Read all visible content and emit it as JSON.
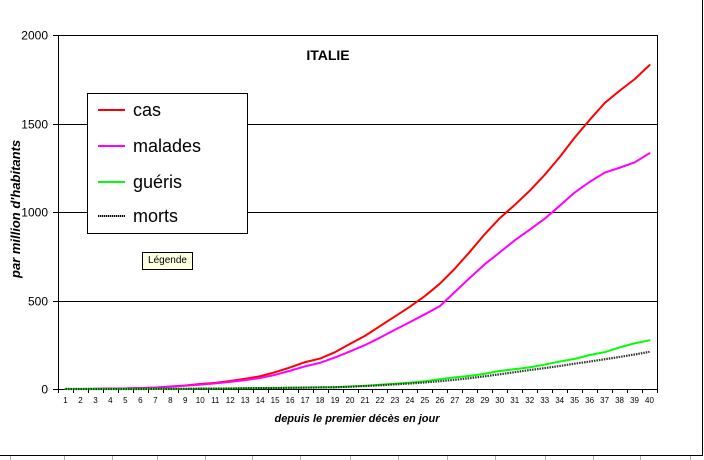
{
  "chart_data": {
    "type": "line",
    "title": "ITALIE",
    "xlabel": "depuis le premier décès en jour",
    "ylabel": "par million d'habitants",
    "categories": [
      1,
      2,
      3,
      4,
      5,
      6,
      7,
      8,
      9,
      10,
      11,
      12,
      13,
      14,
      15,
      16,
      17,
      18,
      19,
      20,
      21,
      22,
      23,
      24,
      25,
      26,
      27,
      28,
      29,
      30,
      31,
      32,
      33,
      34,
      35,
      36,
      37,
      38,
      39,
      40
    ],
    "ylim": [
      0,
      2000
    ],
    "yticks": [
      0,
      500,
      1000,
      1500,
      2000
    ],
    "grid": "horizontal",
    "legend_position": "top-left",
    "series": [
      {
        "name": "cas",
        "color": "#ff0000",
        "dash": "solid",
        "values": [
          0,
          0,
          1,
          2,
          3,
          5,
          8,
          14,
          20,
          28,
          35,
          45,
          58,
          72,
          95,
          122,
          152,
          172,
          208,
          255,
          300,
          355,
          410,
          465,
          525,
          595,
          680,
          775,
          875,
          965,
          1040,
          1120,
          1210,
          1310,
          1420,
          1520,
          1615,
          1685,
          1750,
          1830
        ]
      },
      {
        "name": "malades",
        "color": "#ff00ff",
        "dash": "solid",
        "values": [
          0,
          0,
          1,
          2,
          3,
          5,
          8,
          13,
          18,
          25,
          32,
          40,
          50,
          62,
          80,
          103,
          128,
          148,
          178,
          212,
          248,
          290,
          335,
          378,
          422,
          468,
          548,
          628,
          705,
          772,
          840,
          900,
          962,
          1035,
          1110,
          1170,
          1222,
          1250,
          1280,
          1332
        ]
      },
      {
        "name": "guéris",
        "color": "#00ff00",
        "dash": "solid",
        "values": [
          0,
          0,
          0,
          0,
          0,
          0,
          0,
          1,
          1,
          2,
          2,
          3,
          4,
          5,
          6,
          7,
          8,
          9,
          10,
          14,
          18,
          24,
          30,
          36,
          44,
          55,
          66,
          74,
          86,
          102,
          112,
          122,
          138,
          155,
          170,
          192,
          208,
          235,
          258,
          275
        ]
      },
      {
        "name": "morts",
        "color": "#333333",
        "dash": "dotted",
        "values": [
          0,
          0,
          0,
          0,
          0,
          0,
          1,
          1,
          1,
          2,
          2,
          3,
          4,
          5,
          6,
          7,
          8,
          9,
          10,
          13,
          17,
          21,
          26,
          31,
          37,
          44,
          52,
          61,
          72,
          83,
          95,
          107,
          118,
          130,
          143,
          155,
          168,
          181,
          195,
          210
        ]
      }
    ]
  },
  "ui": {
    "legend_tooltip": "Légende"
  }
}
